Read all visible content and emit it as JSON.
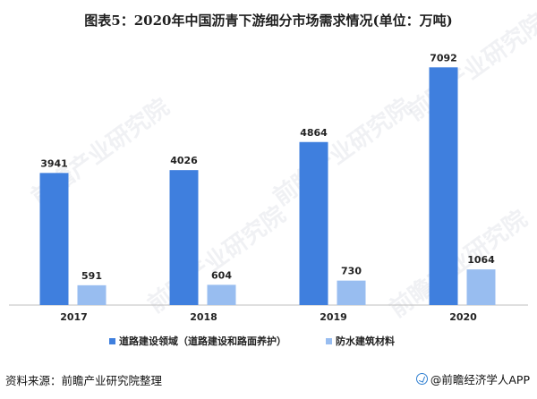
{
  "title": "图表5：2020年中国沥青下游细分市场需求情况(单位：万吨)",
  "source": "资料来源：前瞻产业研究院整理",
  "brand": "@前瞻经济学人APP",
  "watermark": "前瞻产业研究院",
  "colors": {
    "series1": "#3f7fde",
    "series2": "#98bdf0"
  },
  "chart_data": {
    "type": "bar",
    "categories": [
      "2017",
      "2018",
      "2019",
      "2020"
    ],
    "series": [
      {
        "name": "道路建设领域（道路建设和路面养护）",
        "values": [
          3941,
          4026,
          4864,
          7092
        ]
      },
      {
        "name": "防水建筑材料",
        "values": [
          591,
          604,
          730,
          1064
        ]
      }
    ],
    "ylim": [
      0,
      7500
    ],
    "grid": false,
    "legend": "bottom"
  }
}
